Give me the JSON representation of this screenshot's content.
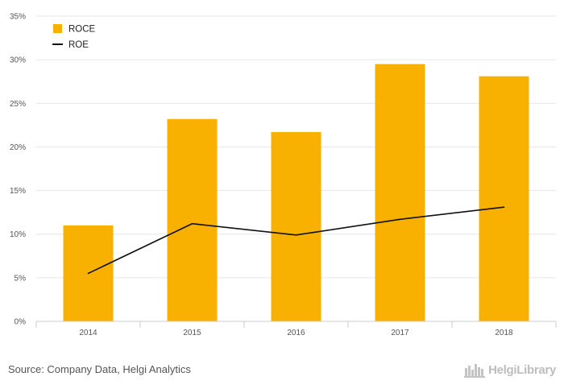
{
  "chart_data": {
    "type": "bar",
    "categories": [
      "2014",
      "2015",
      "2016",
      "2017",
      "2018"
    ],
    "series": [
      {
        "name": "ROCE",
        "kind": "bar",
        "color": "#F8B100",
        "values": [
          11.0,
          23.2,
          21.7,
          29.5,
          28.1
        ]
      },
      {
        "name": "ROE",
        "kind": "line",
        "color": "#111111",
        "values": [
          5.5,
          11.2,
          9.9,
          11.7,
          13.1
        ]
      }
    ],
    "title": "",
    "xlabel": "",
    "ylabel": "",
    "ylim": [
      0,
      35
    ],
    "yticks": [
      "0%",
      "5%",
      "10%",
      "15%",
      "20%",
      "25%",
      "30%",
      "35%"
    ],
    "ytick_values": [
      0,
      5,
      10,
      15,
      20,
      25,
      30,
      35
    ],
    "grid": true,
    "legend_position": "top-left"
  },
  "footer": {
    "source": "Source: Company Data, Helgi Analytics",
    "brand": "HelgiLibrary"
  },
  "colors": {
    "grid": "#e6e6e6",
    "axis": "#cccccc",
    "brand": "#bdbdbd"
  }
}
